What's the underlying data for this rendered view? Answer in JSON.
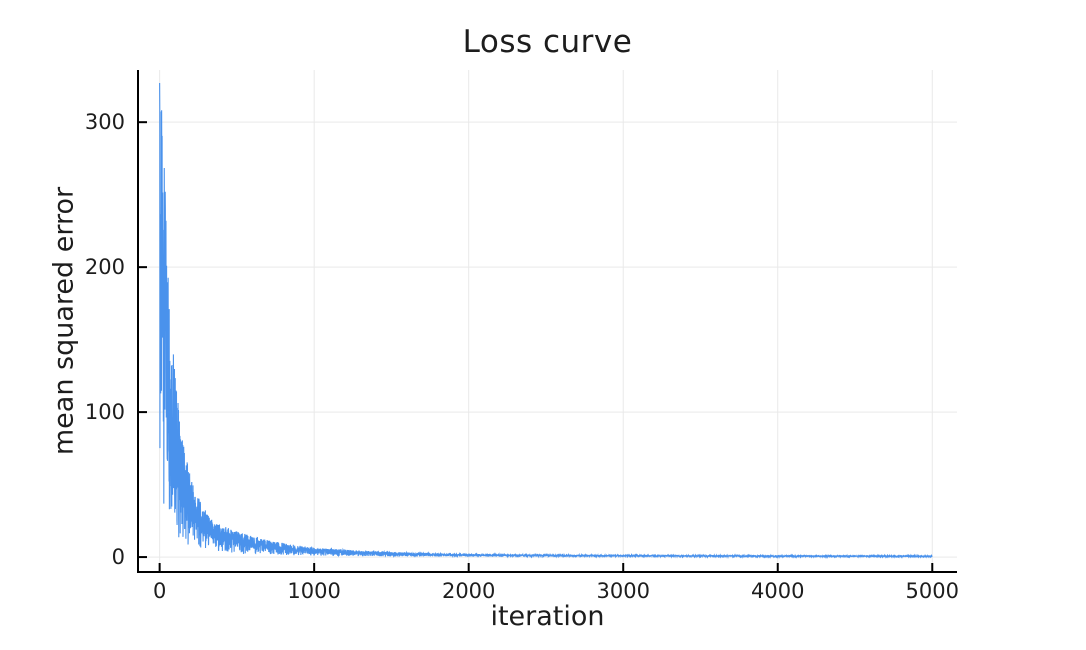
{
  "chart_data": {
    "type": "line",
    "title": "Loss curve",
    "xlabel": "iteration",
    "ylabel": "mean squared error",
    "x_ticks": [
      0,
      1000,
      2000,
      3000,
      4000,
      5000
    ],
    "y_ticks": [
      0,
      100,
      200,
      300
    ],
    "xlim": [
      -140,
      5160
    ],
    "ylim": [
      -10.3,
      336
    ],
    "grid": true,
    "legend": false,
    "background_color": "#ffffff",
    "grid_color": "#e9e9e9",
    "axis_color": "#000000",
    "series": [
      {
        "name": "loss",
        "color": "#4a92ec",
        "n_iterations": 5001,
        "start_value": 327,
        "end_value": 0.9,
        "description": "noisy SGD loss oscillating between decaying envelopes",
        "upper_envelope": [
          [
            0,
            327
          ],
          [
            20,
            300
          ],
          [
            60,
            200
          ],
          [
            125,
            100
          ],
          [
            215,
            50
          ],
          [
            345,
            25
          ],
          [
            580,
            15
          ],
          [
            1000,
            6.5
          ],
          [
            1500,
            3.5
          ],
          [
            2000,
            2.2
          ],
          [
            3000,
            1.4
          ],
          [
            4000,
            1.0
          ],
          [
            5000,
            0.9
          ]
        ],
        "lower_envelope_ratio": 0.13
      }
    ]
  }
}
